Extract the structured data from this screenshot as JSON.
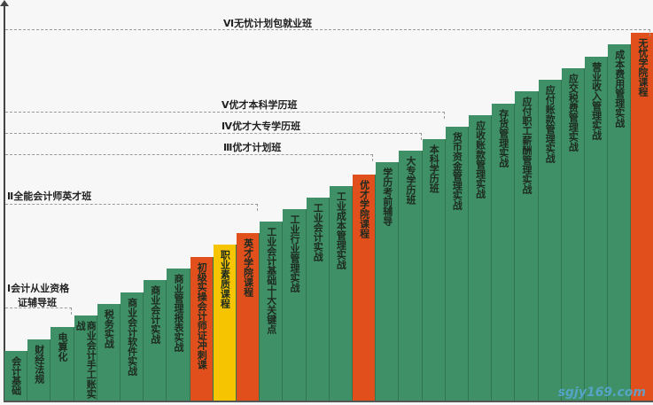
{
  "colors": {
    "green": "#3f9066",
    "orange": "#e04f1c",
    "yellow": "#f6c400"
  },
  "tiers": [
    {
      "label": "Ⅰ会计从业资格",
      "label2": "证辅导班"
    },
    {
      "label": "Ⅱ全能会计师英才班"
    },
    {
      "label": "Ⅲ优才计划班"
    },
    {
      "label": "Ⅳ优才大专学历班"
    },
    {
      "label": "Ⅴ优才本科学历班"
    },
    {
      "label": "Ⅵ无忧计划包就业班"
    }
  ],
  "bars": [
    {
      "label": "会计基础",
      "color": "green"
    },
    {
      "label": "财经法规",
      "color": "green"
    },
    {
      "label": "电算化",
      "color": "green"
    },
    {
      "label": "商业会计手工账实战",
      "color": "green"
    },
    {
      "label": "税务实战",
      "color": "green"
    },
    {
      "label": "商业会计软件实战",
      "color": "green"
    },
    {
      "label": "商业会计实战",
      "color": "green"
    },
    {
      "label": "商业管理报表实战",
      "color": "green"
    },
    {
      "label": "初级实操会计师证冲刺课",
      "color": "orange"
    },
    {
      "label": "职业素质课程",
      "color": "yellow"
    },
    {
      "label": "英才学院课程",
      "color": "orange"
    },
    {
      "label": "工业会计基础十大关键点",
      "color": "green"
    },
    {
      "label": "工业行业管理实战",
      "color": "green"
    },
    {
      "label": "工业会计实战",
      "color": "green"
    },
    {
      "label": "工业成本管理实战",
      "color": "green"
    },
    {
      "label": "优才学院课程",
      "color": "orange"
    },
    {
      "label": "学历考前辅导",
      "color": "green"
    },
    {
      "label": "大专学历班",
      "color": "green"
    },
    {
      "label": "本科学历班",
      "color": "green"
    },
    {
      "label": "货币资金管理实战",
      "color": "green"
    },
    {
      "label": "应收账款管理实战",
      "color": "green"
    },
    {
      "label": "存货管理实战",
      "color": "green"
    },
    {
      "label": "应付职工薪酬管理实战",
      "color": "green"
    },
    {
      "label": "应付账款管理实战",
      "color": "green"
    },
    {
      "label": "应交税费管理实战",
      "color": "green"
    },
    {
      "label": "营业收入管理实战",
      "color": "green"
    },
    {
      "label": "成本费用管理实战",
      "color": "green"
    },
    {
      "label": "无忧学院课程",
      "color": "orange"
    }
  ],
  "watermark": "sgjy169.com"
}
